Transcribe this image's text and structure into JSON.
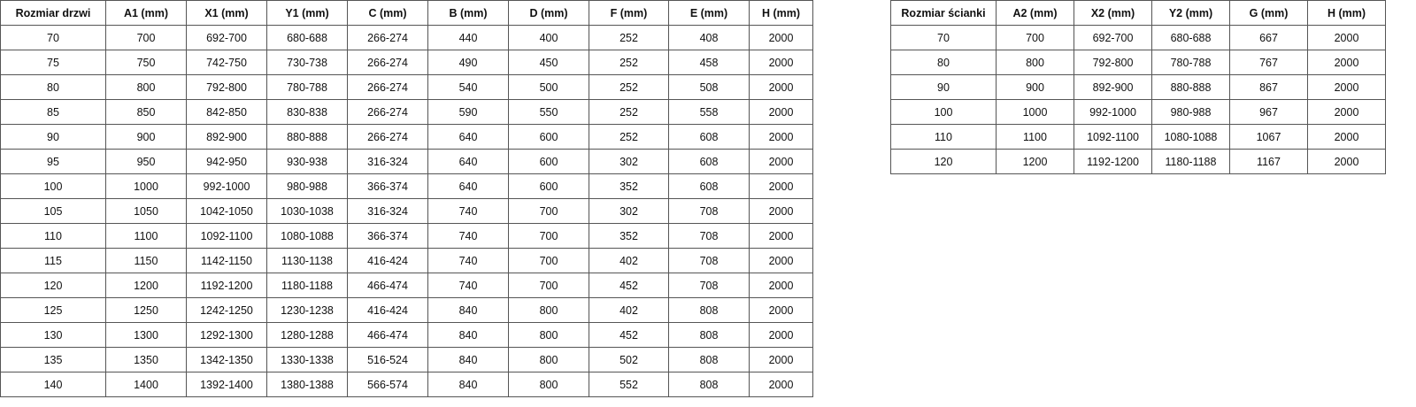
{
  "doors_table": {
    "headers": [
      "Rozmiar drzwi",
      "A1 (mm)",
      "X1 (mm)",
      "Y1 (mm)",
      "C (mm)",
      "B (mm)",
      "D (mm)",
      "F (mm)",
      "E (mm)",
      "H (mm)"
    ],
    "rows": [
      [
        "70",
        "700",
        "692-700",
        "680-688",
        "266-274",
        "440",
        "400",
        "252",
        "408",
        "2000"
      ],
      [
        "75",
        "750",
        "742-750",
        "730-738",
        "266-274",
        "490",
        "450",
        "252",
        "458",
        "2000"
      ],
      [
        "80",
        "800",
        "792-800",
        "780-788",
        "266-274",
        "540",
        "500",
        "252",
        "508",
        "2000"
      ],
      [
        "85",
        "850",
        "842-850",
        "830-838",
        "266-274",
        "590",
        "550",
        "252",
        "558",
        "2000"
      ],
      [
        "90",
        "900",
        "892-900",
        "880-888",
        "266-274",
        "640",
        "600",
        "252",
        "608",
        "2000"
      ],
      [
        "95",
        "950",
        "942-950",
        "930-938",
        "316-324",
        "640",
        "600",
        "302",
        "608",
        "2000"
      ],
      [
        "100",
        "1000",
        "992-1000",
        "980-988",
        "366-374",
        "640",
        "600",
        "352",
        "608",
        "2000"
      ],
      [
        "105",
        "1050",
        "1042-1050",
        "1030-1038",
        "316-324",
        "740",
        "700",
        "302",
        "708",
        "2000"
      ],
      [
        "110",
        "1100",
        "1092-1100",
        "1080-1088",
        "366-374",
        "740",
        "700",
        "352",
        "708",
        "2000"
      ],
      [
        "115",
        "1150",
        "1142-1150",
        "1130-1138",
        "416-424",
        "740",
        "700",
        "402",
        "708",
        "2000"
      ],
      [
        "120",
        "1200",
        "1192-1200",
        "1180-1188",
        "466-474",
        "740",
        "700",
        "452",
        "708",
        "2000"
      ],
      [
        "125",
        "1250",
        "1242-1250",
        "1230-1238",
        "416-424",
        "840",
        "800",
        "402",
        "808",
        "2000"
      ],
      [
        "130",
        "1300",
        "1292-1300",
        "1280-1288",
        "466-474",
        "840",
        "800",
        "452",
        "808",
        "2000"
      ],
      [
        "135",
        "1350",
        "1342-1350",
        "1330-1338",
        "516-524",
        "840",
        "800",
        "502",
        "808",
        "2000"
      ],
      [
        "140",
        "1400",
        "1392-1400",
        "1380-1388",
        "566-574",
        "840",
        "800",
        "552",
        "808",
        "2000"
      ]
    ]
  },
  "walls_table": {
    "headers": [
      "Rozmiar ścianki",
      "A2 (mm)",
      "X2 (mm)",
      "Y2 (mm)",
      "G (mm)",
      "H (mm)"
    ],
    "rows": [
      [
        "70",
        "700",
        "692-700",
        "680-688",
        "667",
        "2000"
      ],
      [
        "80",
        "800",
        "792-800",
        "780-788",
        "767",
        "2000"
      ],
      [
        "90",
        "900",
        "892-900",
        "880-888",
        "867",
        "2000"
      ],
      [
        "100",
        "1000",
        "992-1000",
        "980-988",
        "967",
        "2000"
      ],
      [
        "110",
        "1100",
        "1092-1100",
        "1080-1088",
        "1067",
        "2000"
      ],
      [
        "120",
        "1200",
        "1192-1200",
        "1180-1188",
        "1167",
        "2000"
      ]
    ]
  }
}
